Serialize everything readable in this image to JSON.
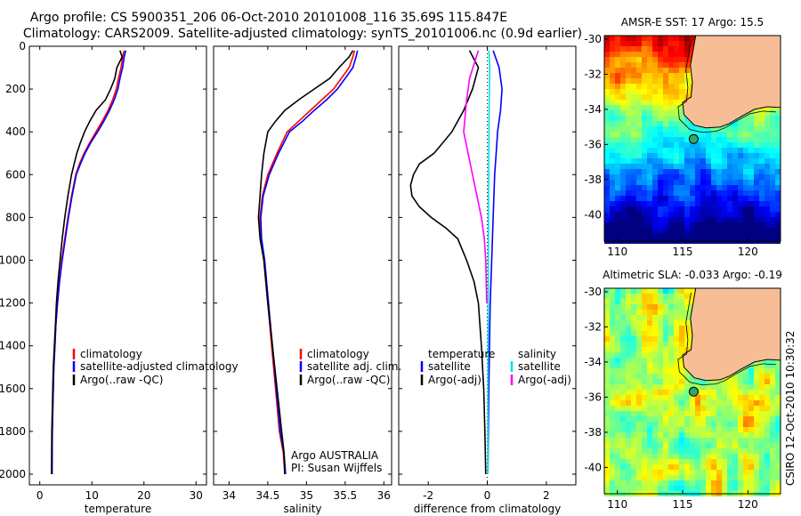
{
  "title": {
    "line1": "Argo profile: CS 5900351_206 06-Oct-2010 20101008_116 35.69S 115.847E",
    "line2": "Climatology: CARS2009. Satellite-adjusted climatology: synTS_20101006.nc (0.9d earlier)"
  },
  "colors": {
    "climatology": "#ff0000",
    "satellite": "#0000ff",
    "argo": "#000000",
    "argo_adj": "#ff00ff",
    "sal_satellite": "#00e0e0"
  },
  "chart_data": [
    {
      "type": "line",
      "name": "temperature",
      "xlabel": "temperature",
      "ylabel": "",
      "xlim": [
        -2,
        32
      ],
      "ylim": [
        2050,
        0
      ],
      "xticks": [
        0,
        10,
        20,
        30
      ],
      "yticks": [
        0,
        200,
        400,
        600,
        800,
        1000,
        1200,
        1400,
        1600,
        1800,
        2000
      ],
      "legend": {
        "placement": "lower-middle",
        "entries": [
          "climatology",
          "satellite-adjusted climatology",
          "Argo(..raw -QC)"
        ]
      },
      "series": [
        {
          "name": "climatology",
          "color": "#ff0000",
          "x": [
            16.2,
            15.9,
            15.6,
            15.1,
            14.7,
            14.0,
            13.1,
            12.0,
            10.8,
            9.6,
            8.5,
            7.6,
            6.9,
            6.1,
            5.4,
            4.8,
            4.2,
            3.8,
            3.4,
            3.1,
            2.9,
            2.7,
            2.6,
            2.5,
            2.4,
            2.35
          ],
          "y": [
            20,
            50,
            100,
            150,
            200,
            250,
            300,
            350,
            400,
            450,
            500,
            550,
            600,
            700,
            800,
            900,
            1000,
            1100,
            1200,
            1300,
            1400,
            1500,
            1600,
            1700,
            1800,
            2000
          ]
        },
        {
          "name": "satellite-adjusted climatology",
          "color": "#0000ff",
          "x": [
            16.5,
            16.2,
            15.9,
            15.4,
            15.0,
            14.3,
            13.4,
            12.3,
            11.1,
            9.8,
            8.7,
            7.8,
            7.0,
            6.2,
            5.5,
            4.9,
            4.3,
            3.8,
            3.4,
            3.1,
            2.9,
            2.7,
            2.6,
            2.5,
            2.4,
            2.35
          ],
          "y": [
            20,
            50,
            100,
            150,
            200,
            250,
            300,
            350,
            400,
            450,
            500,
            550,
            600,
            700,
            800,
            900,
            1000,
            1100,
            1200,
            1300,
            1400,
            1500,
            1600,
            1700,
            1800,
            2000
          ]
        },
        {
          "name": "Argo(..raw -QC)",
          "color": "#000000",
          "x": [
            15.4,
            15.8,
            14.8,
            14.4,
            13.6,
            12.6,
            10.8,
            9.6,
            8.6,
            7.8,
            7.1,
            6.6,
            6.1,
            5.4,
            4.8,
            4.3,
            3.9,
            3.5,
            3.2,
            3.0,
            2.8,
            2.6,
            2.5,
            2.4,
            2.3,
            2.25
          ],
          "y": [
            20,
            50,
            100,
            150,
            200,
            250,
            300,
            350,
            400,
            450,
            500,
            550,
            600,
            700,
            800,
            900,
            1000,
            1100,
            1200,
            1300,
            1400,
            1500,
            1600,
            1700,
            1800,
            2000
          ]
        }
      ]
    },
    {
      "type": "line",
      "name": "salinity",
      "xlabel": "salinity",
      "ylabel": "",
      "xlim": [
        33.8,
        36.1
      ],
      "ylim": [
        2050,
        0
      ],
      "xticks": [
        34,
        34.5,
        35,
        35.5,
        36
      ],
      "legend": {
        "placement": "lower-right",
        "entries": [
          "climatology",
          "satellite adj. clim.",
          "Argo(..raw -QC)"
        ]
      },
      "annotation": [
        "Argo AUSTRALIA",
        "PI: Susan Wijffels"
      ],
      "series": [
        {
          "name": "climatology",
          "color": "#ff0000",
          "x": [
            35.62,
            35.6,
            35.55,
            35.45,
            35.35,
            35.2,
            35.05,
            34.9,
            34.75,
            34.62,
            34.5,
            34.43,
            34.4,
            34.41,
            34.45,
            34.5,
            34.55,
            34.6,
            34.65,
            34.7,
            34.72
          ],
          "y": [
            20,
            50,
            100,
            150,
            200,
            250,
            300,
            350,
            400,
            500,
            600,
            700,
            800,
            900,
            1000,
            1200,
            1400,
            1600,
            1800,
            1900,
            2000
          ]
        },
        {
          "name": "satellite adj. clim.",
          "color": "#0000ff",
          "x": [
            35.66,
            35.64,
            35.6,
            35.5,
            35.4,
            35.26,
            35.1,
            34.95,
            34.78,
            34.64,
            34.52,
            34.44,
            34.41,
            34.42,
            34.46,
            34.51,
            34.56,
            34.61,
            34.66,
            34.71,
            34.73
          ],
          "y": [
            20,
            50,
            100,
            150,
            200,
            250,
            300,
            350,
            400,
            500,
            600,
            700,
            800,
            900,
            1000,
            1200,
            1400,
            1600,
            1800,
            1900,
            2000
          ]
        },
        {
          "name": "Argo(..raw -QC)",
          "color": "#000000",
          "x": [
            35.6,
            35.55,
            35.42,
            35.3,
            35.1,
            34.9,
            34.72,
            34.6,
            34.5,
            34.45,
            34.42,
            34.4,
            34.38,
            34.4,
            34.45,
            34.5,
            34.56,
            34.62,
            34.68,
            34.71,
            34.72
          ],
          "y": [
            20,
            50,
            100,
            150,
            200,
            250,
            300,
            350,
            400,
            500,
            600,
            700,
            800,
            900,
            1000,
            1200,
            1400,
            1600,
            1800,
            1900,
            2000
          ]
        }
      ]
    },
    {
      "type": "line",
      "name": "difference",
      "xlabel": "difference from climatology",
      "ylabel": "",
      "xlim": [
        -3,
        3
      ],
      "ylim": [
        2050,
        0
      ],
      "xticks": [
        -2,
        0,
        2
      ],
      "legend": {
        "placement": "lower-middle",
        "entries": [
          "temperature",
          "satellite",
          "Argo(-adj)",
          "salinity",
          "satellite",
          "Argo(-adj)"
        ]
      },
      "series": [
        {
          "name": "temperature Argo(-adj)",
          "color": "#000000",
          "x": [
            -0.6,
            -0.3,
            -0.5,
            -0.8,
            -1.2,
            -1.8,
            -2.3,
            -2.5,
            -2.6,
            -2.55,
            -2.3,
            -1.9,
            -1.4,
            -1.0,
            -0.7,
            -0.45,
            -0.3,
            -0.2,
            -0.12,
            -0.08,
            -0.05
          ],
          "y": [
            20,
            100,
            200,
            300,
            400,
            500,
            550,
            600,
            650,
            700,
            750,
            800,
            850,
            900,
            1000,
            1100,
            1200,
            1400,
            1600,
            1800,
            2000
          ]
        },
        {
          "name": "temperature satellite",
          "color": "#0000ff",
          "x": [
            0.2,
            0.4,
            0.5,
            0.45,
            0.35,
            0.3,
            0.25,
            0.2,
            0.15,
            0.1,
            0.05,
            0.02
          ],
          "y": [
            20,
            100,
            200,
            300,
            400,
            500,
            600,
            800,
            1000,
            1200,
            1600,
            2000
          ]
        },
        {
          "name": "salinity Argo(-adj)",
          "color": "#ff00ff",
          "x": [
            -0.3,
            -0.6,
            -0.7,
            -0.8,
            -0.65,
            -0.5,
            -0.35,
            -0.2,
            -0.1,
            -0.05,
            -0.02
          ],
          "y": [
            20,
            150,
            250,
            400,
            500,
            600,
            700,
            800,
            900,
            1000,
            1200
          ]
        },
        {
          "name": "salinity satellite",
          "color": "#00e0e0",
          "x": [
            0.05,
            0.08,
            0.06,
            0.05,
            0.04,
            0.03,
            0.02,
            0.02
          ],
          "y": [
            20,
            100,
            300,
            500,
            800,
            1200,
            1600,
            2000
          ]
        }
      ]
    },
    {
      "type": "heatmap",
      "name": "sst-map",
      "title": "AMSR-E SST: 17 Argo: 15.5",
      "xlim": [
        109,
        122.5
      ],
      "ylim": [
        -41.5,
        -29.8
      ],
      "xticks": [
        110,
        115,
        120
      ],
      "yticks": [
        -30,
        -32,
        -34,
        -36,
        -38,
        -40
      ],
      "float": {
        "lon": 115.847,
        "lat": -35.69
      }
    },
    {
      "type": "heatmap",
      "name": "sla-map",
      "title": "Altimetric SLA: -0.033 Argo: -0.19",
      "xlim": [
        109,
        122.5
      ],
      "ylim": [
        -41.5,
        -29.8
      ],
      "xticks": [
        110,
        115,
        120
      ],
      "yticks": [
        -30,
        -32,
        -34,
        -36,
        -38,
        -40
      ],
      "float": {
        "lon": 115.847,
        "lat": -35.69
      }
    }
  ],
  "side_text": "CSIRO 12-Oct-2010 10:30:32"
}
